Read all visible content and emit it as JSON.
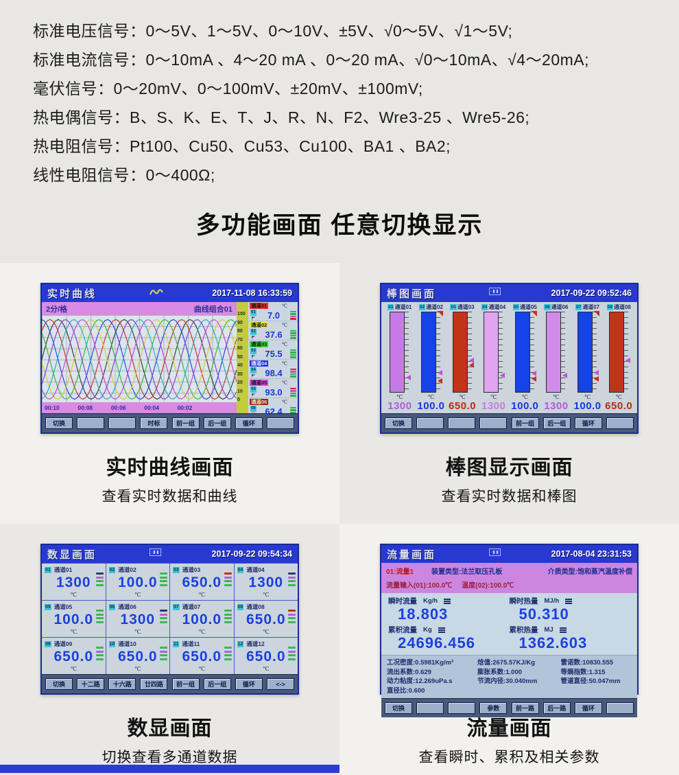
{
  "colors": {
    "titlebar_blue": "#2839d2",
    "pink": "#d98ae2",
    "scale_yellow": "#c3cc3e",
    "value_blue": "#1a40e0",
    "button_face": "#9cb0cc"
  },
  "specs": {
    "lines": [
      "标准电压信号：0～5V、1～5V、0～10V、±5V、√0～5V、√1～5V;",
      "标准电流信号：0～10mA 、4～20 mA 、0～20 mA、√0～10mA、√4～20mA;",
      "毫伏信号：0～20mV、0～100mV、±20mV、±100mV;",
      "热电偶信号：B、S、K、E、T、J、R、N、F2、Wre3-25 、Wre5-26;",
      "热电阻信号：Pt100、Cu50、Cu53、Cu100、BA1 、BA2;",
      "线性电阻信号：0～400Ω;"
    ]
  },
  "heading": "多功能画面 任意切换显示",
  "screens": {
    "curve": {
      "title": "实时曲线",
      "datetime": "2017-11-08 16:33:59",
      "interval_label": "2分/格",
      "group_label": "曲线组合01",
      "scale_ticks": [
        "100",
        "90",
        "80",
        "70",
        "60",
        "50",
        "40",
        "30",
        "20",
        "10",
        "0"
      ],
      "time_labels": [
        "00:10",
        "00:08",
        "00:06",
        "00:04",
        "00:02"
      ],
      "curves": [
        {
          "color": "#303030",
          "period": 96,
          "phase": 0
        },
        {
          "color": "#c62c20",
          "period": 96,
          "phase": 0.8
        },
        {
          "color": "#1c3ad8",
          "period": 96,
          "phase": 1.6
        },
        {
          "color": "#2ab42a",
          "period": 96,
          "phase": 2.4
        },
        {
          "color": "#d2ca22",
          "period": 96,
          "phase": 3.2
        },
        {
          "color": "#c63ac6",
          "period": 96,
          "phase": 4.0
        },
        {
          "color": "#23a8b4",
          "period": 96,
          "phase": 4.8
        },
        {
          "color": "#7c3ad0",
          "period": 96,
          "phase": 5.6
        }
      ],
      "channels": [
        {
          "num": "01",
          "name": "通道01",
          "tag_color": "#e63028",
          "unit": "℃",
          "value": "7.0",
          "indicators": [
            "#2cb44c",
            "#2cb44c",
            "#d444c8",
            "#d02818"
          ]
        },
        {
          "num": "02",
          "name": "通道02",
          "tag_color": "#e6e63c",
          "unit": "℃",
          "value": "37.6",
          "indicators": [
            "#2cb44c",
            "#2cb44c",
            "#2cb44c",
            "#2cb44c"
          ]
        },
        {
          "num": "03",
          "name": "通道03",
          "tag_color": "#3cd43c",
          "unit": "℃",
          "value": "75.5",
          "indicators": [
            "#2cb44c",
            "#2cb44c",
            "#2cb44c",
            "#2cb44c"
          ]
        },
        {
          "num": "04",
          "name": "通道04",
          "tag_color": "#2030dc",
          "unit": "℃",
          "value": "98.4",
          "indicators": [
            "#d02818",
            "#d444c8",
            "#2cb44c",
            "#2cb44c"
          ]
        },
        {
          "num": "05",
          "name": "通道05",
          "tag_color": "#e040e0",
          "unit": "℃",
          "value": "93.0",
          "indicators": [
            "#d02818",
            "#d444c8",
            "#2cb44c",
            "#2cb44c"
          ]
        },
        {
          "num": "06",
          "name": "通道06",
          "tag_color": "#9c2414",
          "unit": "℃",
          "value": "62.4",
          "indicators": [
            "#2cb44c",
            "#2cb44c",
            "#2cb44c",
            "#2cb44c"
          ]
        }
      ],
      "buttons": [
        "切换",
        "",
        "",
        "时标",
        "前一组",
        "后一组",
        "循环",
        ""
      ]
    },
    "bar": {
      "title": "棒图画面",
      "datetime": "2017-09-22 09:52:46",
      "channels": [
        {
          "num": "01",
          "name": "通道01",
          "bar_color": "#c77ae6",
          "unit": "℃",
          "value": "1300",
          "value_color": "#b05ad8",
          "markers": [
            {
              "color": "#c050d8",
              "top": "78%"
            }
          ]
        },
        {
          "num": "02",
          "name": "通道02",
          "bar_color": "#1443e8",
          "unit": "℃",
          "value": "100.0",
          "value_color": "#1538d8",
          "markers": [
            {
              "color": "#c050d8",
              "top": "72%"
            },
            {
              "color": "#d02818",
              "top": "82%"
            }
          ]
        },
        {
          "num": "03",
          "name": "通道03",
          "bar_color": "#c03418",
          "unit": "℃",
          "value": "650.0",
          "value_color": "#b82c14",
          "markers": [
            {
              "color": "#c050d8",
              "top": "57%"
            },
            {
              "color": "#d02818",
              "top": "63%"
            }
          ]
        },
        {
          "num": "04",
          "name": "通道04",
          "bar_color": "#e0a4f0",
          "unit": "℃",
          "value": "1300",
          "value_color": "#c77ce0",
          "markers": [
            {
              "color": "#c050d8",
              "top": "75%"
            }
          ]
        },
        {
          "num": "05",
          "name": "通道05",
          "bar_color": "#1443e8",
          "unit": "℃",
          "value": "100.0",
          "value_color": "#1538d8",
          "markers": [
            {
              "color": "#c050d8",
              "top": "73%"
            },
            {
              "color": "#d02818",
              "top": "80%"
            }
          ]
        },
        {
          "num": "06",
          "name": "通道06",
          "bar_color": "#cf8cea",
          "unit": "℃",
          "value": "1300",
          "value_color": "#b05ad8",
          "markers": [
            {
              "color": "#c050d8",
              "top": "75%"
            }
          ]
        },
        {
          "num": "07",
          "name": "通道07",
          "bar_color": "#1443e8",
          "unit": "℃",
          "value": "100.0",
          "value_color": "#1538d8",
          "markers": [
            {
              "color": "#c050d8",
              "top": "72%"
            },
            {
              "color": "#d02818",
              "top": "80%"
            }
          ]
        },
        {
          "num": "08",
          "name": "通道08",
          "bar_color": "#c03418",
          "unit": "℃",
          "value": "650.0",
          "value_color": "#b82c14",
          "markers": [
            {
              "color": "#c050d8",
              "top": "57%"
            }
          ]
        }
      ],
      "buttons": [
        "切换",
        "",
        "",
        "",
        "前一组",
        "后一组",
        "循环",
        ""
      ]
    },
    "digital": {
      "title": "数显画面",
      "datetime": "2017-09-22 09:54:34",
      "cells": [
        {
          "num": "01",
          "name": "通道01",
          "value": "1300",
          "unit": "℃",
          "indicators": [
            "#2c3c64",
            "#c45ae0",
            "#3cb854",
            "#3cb854"
          ]
        },
        {
          "num": "02",
          "name": "通道02",
          "value": "100.0",
          "unit": "℃",
          "indicators": [
            "#3cb854",
            "#3cb854",
            "#3cb854",
            "#3cb854"
          ]
        },
        {
          "num": "03",
          "name": "通道03",
          "value": "650.0",
          "unit": "℃",
          "indicators": [
            "#c03018",
            "#c45ae0",
            "#3cb854",
            "#3cb854"
          ]
        },
        {
          "num": "04",
          "name": "通道04",
          "value": "1300",
          "unit": "℃",
          "indicators": [
            "#2c3c64",
            "#c45ae0",
            "#3cb854",
            "#3cb854"
          ]
        },
        {
          "num": "05",
          "name": "通道05",
          "value": "100.0",
          "unit": "℃",
          "indicators": [
            "#3cb854",
            "#3cb854",
            "#3cb854",
            "#3cb854"
          ]
        },
        {
          "num": "06",
          "name": "通道06",
          "value": "1300",
          "unit": "℃",
          "indicators": [
            "#2c3c64",
            "#c45ae0",
            "#3cb854",
            "#3cb854"
          ]
        },
        {
          "num": "07",
          "name": "通道07",
          "value": "100.0",
          "unit": "℃",
          "indicators": [
            "#3cb854",
            "#3cb854",
            "#3cb854",
            "#3cb854"
          ]
        },
        {
          "num": "08",
          "name": "通道08",
          "value": "650.0",
          "unit": "℃",
          "indicators": [
            "#c03018",
            "#c45ae0",
            "#3cb854",
            "#3cb854"
          ]
        },
        {
          "num": "09",
          "name": "通道09",
          "value": "650.0",
          "unit": "℃",
          "indicators": [
            "#3cb854",
            "#c45ae0",
            "#3cb854",
            "#3cb854"
          ]
        },
        {
          "num": "10",
          "name": "通道10",
          "value": "650.0",
          "unit": "℃",
          "indicators": [
            "#3cb854",
            "#c45ae0",
            "#3cb854",
            "#3cb854"
          ]
        },
        {
          "num": "11",
          "name": "通道11",
          "value": "650.0",
          "unit": "℃",
          "indicators": [
            "#3cb854",
            "#c45ae0",
            "#3cb854",
            "#3cb854"
          ]
        },
        {
          "num": "12",
          "name": "通道12",
          "value": "650.0",
          "unit": "℃",
          "indicators": [
            "#3cb854",
            "#c45ae0",
            "#3cb854",
            "#3cb854"
          ]
        }
      ],
      "buttons": [
        "切换",
        "十二路",
        "十六路",
        "廿四路",
        "前一组",
        "后一组",
        "循环",
        "<->"
      ]
    },
    "flow": {
      "title": "流量画面",
      "datetime": "2017-08-04 23:31:53",
      "header": {
        "channel": "01:流量1",
        "device_type": "装置类型:法兰取压孔板",
        "medium_type": "介质类型:饱和蒸汽温度补偿",
        "input1": "流量输入(01):100.0℃",
        "input2": "温度(02):100.0℃"
      },
      "values": [
        {
          "label": "瞬时流量",
          "unit": "Kg/h",
          "value": "18.803"
        },
        {
          "label": "瞬时热量",
          "unit": "MJ/h",
          "value": "50.310"
        },
        {
          "label": "累积流量",
          "unit": "Kg",
          "value": "24696.456"
        },
        {
          "label": "累积热量",
          "unit": "MJ",
          "value": "1362.603"
        }
      ],
      "params": [
        "工况密度:0.5981Kg/m³",
        "焓值:2675.57KJ/Kg",
        "雷诺数:10830.555",
        "流出系数:0.629",
        "膨胀系数:1.000",
        "等熵指数:1.315",
        "动力粘度:12.269uPa.s",
        "节流内径:30.040mm",
        "管道直径:50.047mm",
        "直径比:0.600"
      ],
      "buttons": [
        "切换",
        "",
        "",
        "参数",
        "前一路",
        "后一路",
        "循环",
        ""
      ]
    }
  },
  "captions": {
    "curve": {
      "title": "实时曲线画面",
      "subtitle": "查看实时数据和曲线"
    },
    "bar": {
      "title": "棒图显示画面",
      "subtitle": "查看实时数据和棒图"
    },
    "digital": {
      "title": "数显画面",
      "subtitle": "切换查看多通道数据"
    },
    "flow": {
      "title": "流量画面",
      "subtitle": "查看瞬时、累积及相关参数"
    }
  }
}
